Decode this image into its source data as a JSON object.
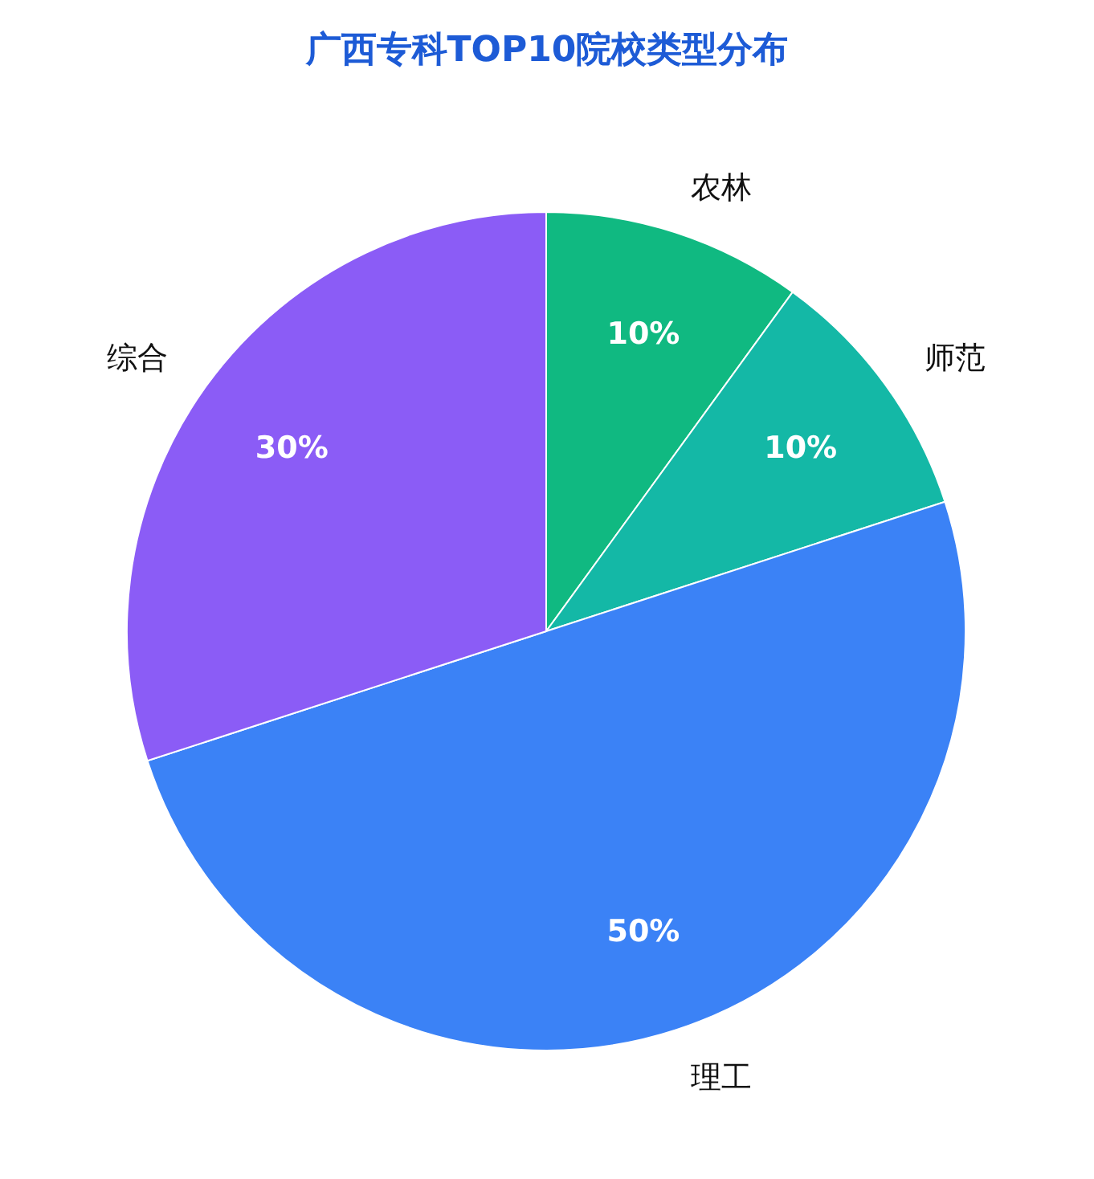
{
  "chart_data": {
    "type": "pie",
    "title": "广西专科TOP10院校类型分布",
    "categories": [
      "农林",
      "师范",
      "理工",
      "综合"
    ],
    "values": [
      10,
      10,
      50,
      30
    ],
    "colors": [
      "#10b981",
      "#14b8a6",
      "#3b82f6",
      "#8b5cf6"
    ],
    "value_labels": [
      "10%",
      "10%",
      "50%",
      "30%"
    ],
    "legend": false
  }
}
